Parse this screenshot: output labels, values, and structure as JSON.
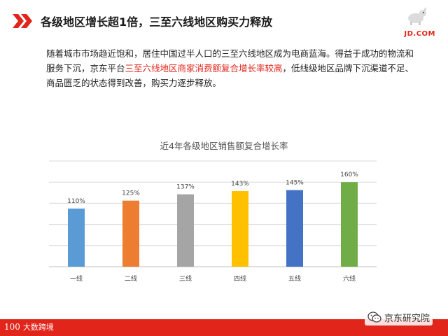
{
  "header": {
    "title": "各级地区增长超1倍，三至六线地区购买力释放",
    "logo_text": "JD.COM"
  },
  "intro": {
    "part1": "随着城市市场趋近饱和，居住中国过半人口的三至六线地区成为电商蓝海。得益于成功的物流和服务下沉，京东平台",
    "highlight": "三至六线地区商家消费额复合增长率较高",
    "part2": "，低线级地区品牌下沉渠道不足、商品匮乏的状态得到改善，购买力逐步释放。"
  },
  "chart_data": {
    "type": "bar",
    "title": "近4年各级地区销售额复合增长率",
    "categories": [
      "一线",
      "二线",
      "三线",
      "四线",
      "五线",
      "六线"
    ],
    "values": [
      110,
      125,
      137,
      143,
      145,
      160
    ],
    "value_labels": [
      "110%",
      "125%",
      "137%",
      "143%",
      "145%",
      "160%"
    ],
    "colors": [
      "#5b9bd5",
      "#ed7d31",
      "#a5a5a5",
      "#ffc000",
      "#4472c4",
      "#70ad47"
    ],
    "xlabel": "",
    "ylabel": "",
    "ylim": [
      0,
      200
    ],
    "grid": true,
    "legend": "none"
  },
  "footer": {
    "logo_num": "100",
    "logo_text": "大数跨境",
    "watermark_text": "京东研究院",
    "accent_color": "#e1251b"
  }
}
